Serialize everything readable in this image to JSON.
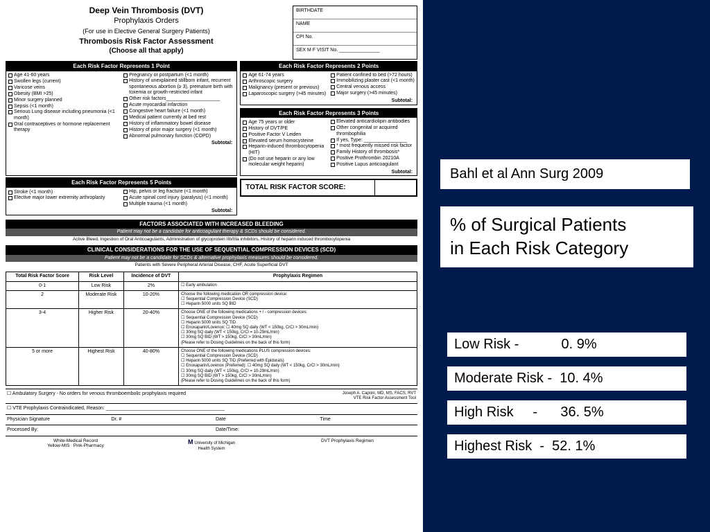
{
  "citation": "Bahl et al Ann Surg 2009",
  "title_line1": " % of Surgical Patients",
  "title_line2": "in Each Risk Category",
  "stats": {
    "low": "Low Risk -           0. 9%",
    "moderate": "Moderate Risk -  10. 4%",
    "high": "High Risk     -      36. 5%",
    "highest": "Highest Risk  -  52. 1%"
  },
  "form": {
    "title": "Deep Vein Thrombosis (DVT)",
    "subtitle": "Prophylaxis Orders",
    "subtitle2": "(For use in Elective General Surgery Patients)",
    "assess1": "Thrombosis Risk Factor Assessment",
    "assess2": "(Choose all that apply)",
    "patient_fields": [
      "BIRTHDATE",
      "NAME",
      "CPI No.",
      "SEX   M   F    VISIT No. _______________"
    ],
    "section1": {
      "header": "Each Risk Factor Represents 1 Point",
      "items": [
        "Age 41-60 years",
        "Swollen legs (current)",
        "Varicose veins",
        "Obesity (BMI >25)",
        "Minor surgery planned",
        "Sepsis (<1 month)",
        "Serious Lung disease including pneumonia (<1 month)",
        "Oral contraceptives or hormone replacement therapy",
        "Pregnancy or postpartum (<1 month)",
        "History of unexplained stillborn infant, recurrent spontaneous abortion (≥ 3), premature birth with toxemia or growth-restricted infant",
        "Other risk factors____________________",
        "Acute myocardial infarction",
        "Congestive heart failure (<1 month)",
        "Medical patient currently at bed rest",
        "History of inflammatory bowel disease",
        "History of prior major surgery (<1 month)",
        "Abnormal pulmonary function (COPD)"
      ]
    },
    "section2": {
      "header": "Each Risk Factor Represents 2 Points",
      "items": [
        "Age 61-74 years",
        "Arthroscopic surgery",
        "Malignancy (present or previous)",
        "Laparoscopic surgery (>45 minutes)",
        "Patient confined to bed (>72 hours)",
        "Immobilizing plaster cast (<1 month)",
        "Central venous access",
        "Major surgery (>45 minutes)"
      ]
    },
    "section3": {
      "header": "Each Risk Factor Represents 3 Points",
      "items": [
        "Age 75 years or older",
        "History of DVT/PE",
        "Positive Factor V Leiden",
        "Elevated serum homocysteine",
        "Heparin-induced thrombocytopenia (HIT)",
        "(Do not use heparin or any low molecular weight heparin)",
        "Elevated anticardiolipin antibodies",
        "Other congenital or acquired thrombophilia",
        "If yes, Type: ________________",
        "* most frequently missed risk factor",
        "Family History of thrombosis*",
        "Positive Prothrombin 20210A",
        "Positive Lupus anticoagulant"
      ]
    },
    "section5": {
      "header": "Each Risk Factor Represents 5 Points",
      "items": [
        "Stroke (<1 month)",
        "Elective major lower extremity arthroplasty",
        "Hip, pelvis or leg fracture (<1 month)",
        "Acute spinal cord injury (paralysis) (<1 month)",
        "Multiple trauma (<1 month)"
      ]
    },
    "subtotal": "Subtotal:",
    "total_label": "TOTAL RISK FACTOR SCORE:",
    "bleeding_header": "FACTORS ASSOCIATED WITH INCREASED BLEEDING",
    "bleeding_note1": "Patient may not be a candidate for anticoagulant therapy & SCDs should be considered.",
    "bleeding_note2": "Active Bleed, Ingestion of Oral Anticoagulants, Administration of glycoprotein IIb/IIIa inhibitors, History of heparin induced thrombocytopenia",
    "scd_header": "CLINICAL CONSIDERATIONS FOR THE USE OF SEQUENTIAL COMPRESSION DEVICES (SCD)",
    "scd_note1": "Patient may not be a candidate for SCDs & alternative prophylaxis measures should be considered.",
    "scd_note2": "Patients with Severe Peripheral Arterial Disease, CHF, Acute Superficial DVT",
    "table": {
      "headers": [
        "Total Risk Factor Score",
        "Risk Level",
        "Incidence of DVT",
        "Prophylaxis Regimen"
      ],
      "rows": [
        {
          "score": "0-1",
          "level": "Low Risk",
          "inc": "2%",
          "regimen": [
            "☐ Early ambulation"
          ]
        },
        {
          "score": "2",
          "level": "Moderate Risk",
          "inc": "10-20%",
          "regimen": [
            "Choose the following medication OR compression device:",
            "☐ Sequential Compression Device (SCD)",
            "☐ Heparin 5000 units SQ BID"
          ]
        },
        {
          "score": "3-4",
          "level": "Higher Risk",
          "inc": "20-40%",
          "regimen": [
            "Choose ONE of the following medications + / - compression devices:",
            "☐ Sequential Compression Device (SCD)",
            "☐ Heparin 5000 units SQ TID",
            "☐ Enoxaparin/Lovenox:  ☐ 40mg SQ daily (WT < 150kg, CrCl > 30mL/min)",
            "                                      ☐ 30mg SQ daily (WT < 150kg, CrCl = 10-29mL/min)",
            "                                      ☐ 30mg SQ BID (WT > 150kg, CrCl > 30mL/min)",
            "(Please refer to Dosing Guidelines on the back of this form)"
          ]
        },
        {
          "score": "5 or more",
          "level": "Highest Risk",
          "inc": "40-80%",
          "regimen": [
            "Choose ONE of the following medications PLUS compression devices:",
            "☐ Sequential Compression Device (SCD)",
            "☐ Heparin 5000 units SQ TID (Preferred with Epidurals)",
            "☐ Enoxaparin/Lovenox (Preferred): ☐ 40mg SQ daily (WT < 150kg, CrCl > 30mL/min)",
            "                                                      ☐ 30mg SQ daily (WT < 150kg, CrCl = 10-29mL/min)",
            "                                                      ☐ 30mg SQ BID (WT > 150kg, CrCl > 30mL/min)",
            "(Please refer to Dosing Guidelines on the back of this form)"
          ]
        }
      ]
    },
    "footer": {
      "amb": "☐ Ambulatory Surgery - No orders for venous thromboembolic prophylaxis required",
      "contra": "☐ VTE Prophylaxis Contraindicated, Reason: ____________________________________________",
      "sig": [
        "Physician Signature",
        "Dr. #",
        "Date",
        "Time"
      ],
      "proc": [
        "Processed By:",
        "",
        "Date/Time:",
        ""
      ],
      "copies_left": "White-Medical Record\nYellow-MIS   Pink-Pharmacy",
      "copies_mid": "University of Michigan\nHealth System",
      "copies_right": "DVT Prophylaxis Regimen",
      "credit": "Joseph A. Caprini, MD, MS, FACS, RVT\nVTE Risk Factor Assessment Tool"
    }
  }
}
